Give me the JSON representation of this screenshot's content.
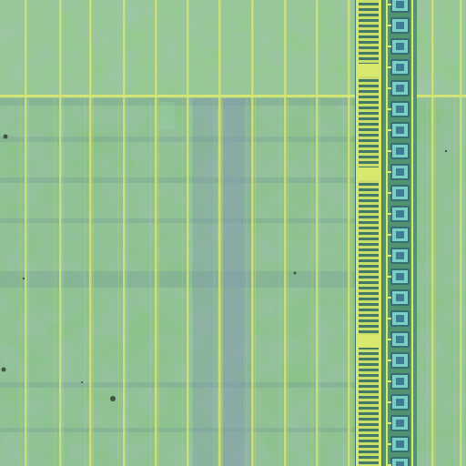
{
  "image": {
    "subject": "die-micrograph",
    "colors": {
      "substrate": "#82c377",
      "substrate_light": "#98d27f",
      "stripe_shadow": "#6f9f84",
      "stripe_purple": "#7c8fa8",
      "trace_yellow": "#d9ea62",
      "trace_yellow_dim": "#bcd65f",
      "pad_frame": "#1f5e5e",
      "pad_face": "#6fd0c0",
      "pad_core": "#2a6f86",
      "bus_yellow": "#e0ef58",
      "defect": "#2c3a2a"
    }
  }
}
